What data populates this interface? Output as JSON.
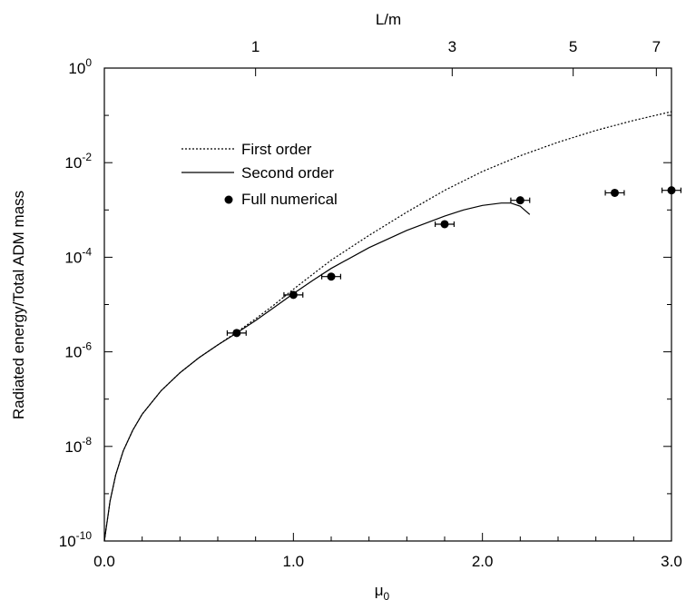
{
  "chart_data": {
    "type": "line",
    "xlabel": "μ",
    "xlabel_subscript": "0",
    "ylabel": "Radiated energy/Total ADM mass",
    "top_axis_label": "L/m",
    "xlim": [
      0.0,
      3.0
    ],
    "ylim": [
      1e-10,
      1
    ],
    "y_scale": "log",
    "x_ticks": [
      {
        "value": 0.0,
        "label": "0.0"
      },
      {
        "value": 1.0,
        "label": "1.0"
      },
      {
        "value": 2.0,
        "label": "2.0"
      },
      {
        "value": 3.0,
        "label": "3.0"
      }
    ],
    "y_ticks": [
      {
        "exp": 0,
        "base": "10",
        "sup": "0"
      },
      {
        "exp": -2,
        "base": "10",
        "sup": "-2"
      },
      {
        "exp": -4,
        "base": "10",
        "sup": "-4"
      },
      {
        "exp": -6,
        "base": "10",
        "sup": "-6"
      },
      {
        "exp": -8,
        "base": "10",
        "sup": "-8"
      },
      {
        "exp": -10,
        "base": "10",
        "sup": "-10"
      }
    ],
    "top_ticks": [
      {
        "mu": 0.8,
        "label": "1"
      },
      {
        "mu": 1.84,
        "label": "3"
      },
      {
        "mu": 2.48,
        "label": "5"
      },
      {
        "mu": 2.92,
        "label": "7"
      }
    ],
    "legend": [
      "First order",
      "Second order",
      "Full numerical"
    ],
    "legend_position": "upper-left",
    "series": [
      {
        "name": "First order",
        "style": "dotted",
        "x": [
          0.0,
          0.03,
          0.06,
          0.1,
          0.15,
          0.2,
          0.3,
          0.4,
          0.5,
          0.6,
          0.7,
          0.8,
          0.9,
          1.0,
          1.1,
          1.2,
          1.4,
          1.6,
          1.8,
          2.0,
          2.2,
          2.4,
          2.6,
          2.8,
          3.0
        ],
        "y": [
          1e-10,
          7e-10,
          2.5e-09,
          8e-09,
          2.2e-08,
          4.8e-08,
          1.5e-07,
          3.6e-07,
          7.5e-07,
          1.4e-06,
          2.6e-06,
          5e-06,
          1e-05,
          2.1e-05,
          4.3e-05,
          8.7e-05,
          0.00029,
          0.0009,
          0.0026,
          0.0065,
          0.014,
          0.027,
          0.048,
          0.078,
          0.12
        ]
      },
      {
        "name": "Second order",
        "style": "solid",
        "x": [
          0.0,
          0.03,
          0.06,
          0.1,
          0.15,
          0.2,
          0.3,
          0.4,
          0.5,
          0.6,
          0.7,
          0.8,
          0.9,
          1.0,
          1.1,
          1.2,
          1.4,
          1.6,
          1.8,
          1.9,
          2.0,
          2.1,
          2.15,
          2.2,
          2.25
        ],
        "y": [
          1e-10,
          7e-10,
          2.5e-09,
          8e-09,
          2.2e-08,
          4.8e-08,
          1.5e-07,
          3.6e-07,
          7.5e-07,
          1.4e-06,
          2.5e-06,
          4.6e-06,
          8.8e-06,
          1.7e-05,
          3.2e-05,
          5.8e-05,
          0.00016,
          0.00037,
          0.00074,
          0.001,
          0.00125,
          0.0014,
          0.0014,
          0.0012,
          0.0008
        ]
      },
      {
        "name": "Full numerical",
        "style": "markers",
        "x": [
          0.7,
          1.0,
          1.2,
          1.8,
          2.2,
          2.7,
          3.0
        ],
        "y": [
          2.5e-06,
          1.6e-05,
          3.9e-05,
          0.0005,
          0.0016,
          0.0023,
          0.0026
        ],
        "xerr": [
          0.05,
          0.05,
          0.05,
          0.05,
          0.05,
          0.05,
          0.05
        ]
      }
    ]
  }
}
